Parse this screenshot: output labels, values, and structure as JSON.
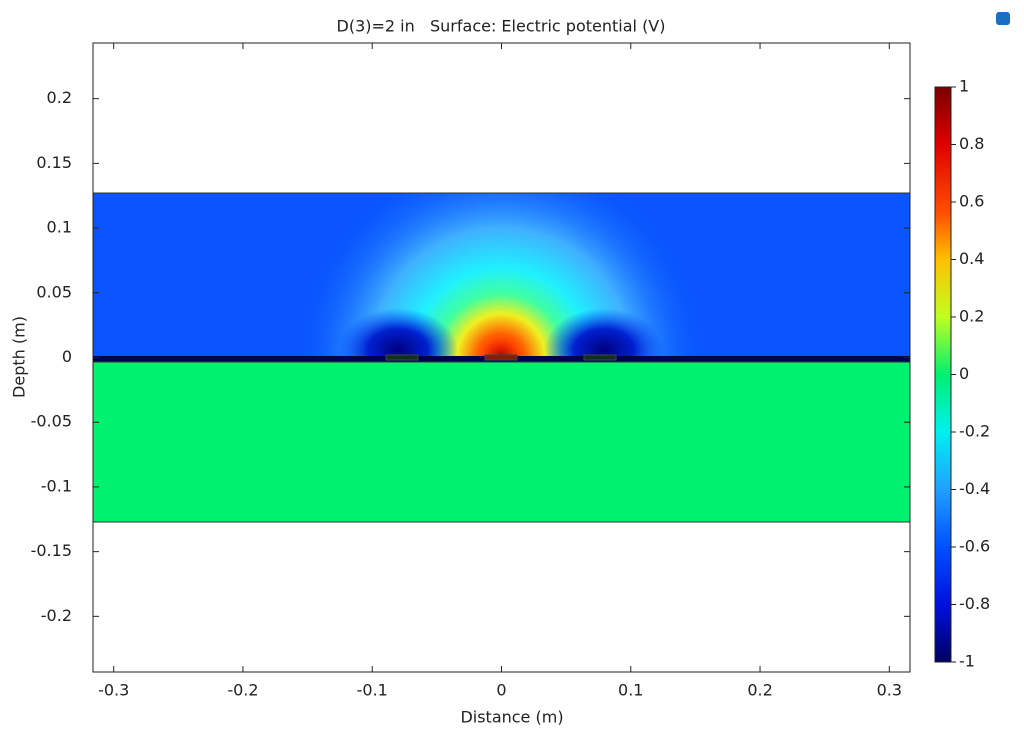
{
  "chart_data": {
    "type": "surface",
    "title": "D(3)=2 in   Surface: Electric potential (V)",
    "xlabel": "Distance (m)",
    "ylabel": "Depth (m)",
    "xlim": [
      -0.316,
      0.316
    ],
    "xticks": [
      -0.3,
      -0.2,
      -0.1,
      0,
      0.1,
      0.2,
      0.3
    ],
    "ylim": [
      -0.243,
      0.243
    ],
    "yticks": [
      0.2,
      0.15,
      0.1,
      0.05,
      0,
      -0.05,
      -0.1,
      -0.15,
      -0.2
    ],
    "colorbar": {
      "clim": [
        -1,
        1
      ],
      "ticks": [
        1,
        0.8,
        0.6,
        0.4,
        0.2,
        0,
        -0.2,
        -0.4,
        -0.6,
        -0.8,
        -1
      ]
    }
  }
}
